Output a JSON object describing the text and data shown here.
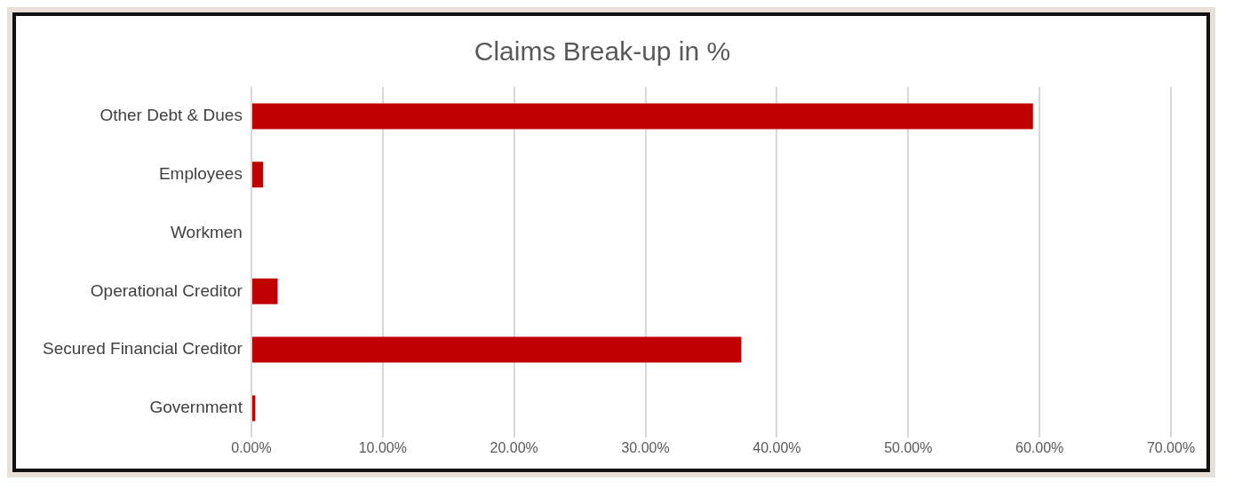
{
  "chart_data": {
    "type": "bar",
    "orientation": "horizontal",
    "title": "Claims Break-up in %",
    "categories": [
      "Other Debt & Dues",
      "Employees",
      "Workmen",
      "Operational Creditor",
      "Secured Financial Creditor",
      "Government"
    ],
    "values": [
      59.5,
      0.9,
      0,
      2.0,
      37.3,
      0.3
    ],
    "color": "#c00000",
    "xlim": [
      0,
      70
    ],
    "xticks": [
      {
        "value": 0,
        "label": "0.00%"
      },
      {
        "value": 10,
        "label": "10.00%"
      },
      {
        "value": 20,
        "label": "20.00%"
      },
      {
        "value": 30,
        "label": "30.00%"
      },
      {
        "value": 40,
        "label": "40.00%"
      },
      {
        "value": 50,
        "label": "50.00%"
      },
      {
        "value": 60,
        "label": "60.00%"
      },
      {
        "value": 70,
        "label": "70.00%"
      }
    ],
    "grid": "x",
    "legend": false
  }
}
